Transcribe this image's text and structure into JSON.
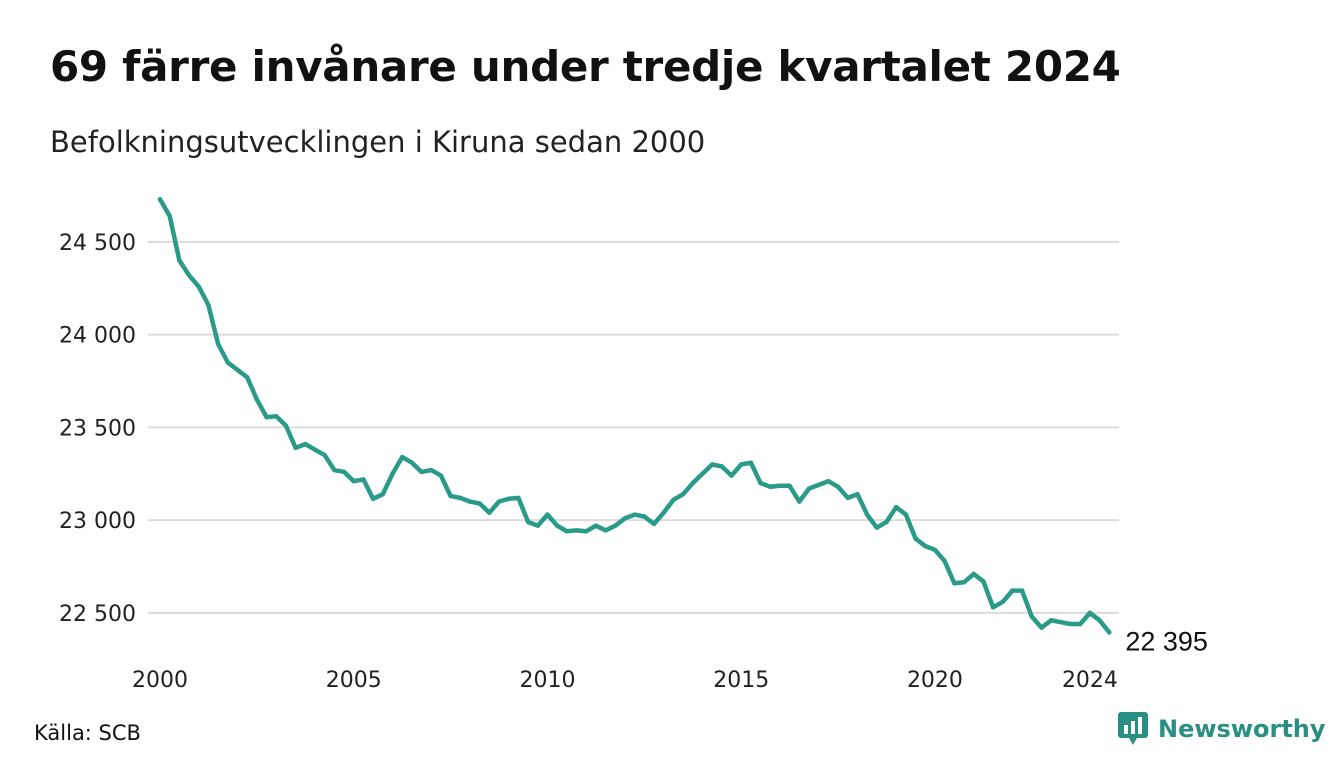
{
  "header": {
    "title": "69 färre invånare under tredje kvartalet 2024",
    "subtitle": "Befolkningsutvecklingen i Kiruna sedan 2000"
  },
  "footer": {
    "source": "Källa: SCB",
    "brand": "Newsworthy",
    "brand_icon": "bar-chart-speech-bubble-icon"
  },
  "colors": {
    "line": "#2a9a89",
    "grid": "#dcdcdc",
    "brand": "#2a8f83"
  },
  "chart_data": {
    "type": "line",
    "title": "69 färre invånare under tredje kvartalet 2024",
    "subtitle": "Befolkningsutvecklingen i Kiruna sedan 2000",
    "xlabel": "",
    "ylabel": "",
    "frequency": "quarterly",
    "x_start": 2000,
    "x_ticks": [
      "2000",
      "2005",
      "2010",
      "2015",
      "2020",
      "2024"
    ],
    "y_ticks": [
      "22 500",
      "23 000",
      "23 500",
      "24 000",
      "24 500"
    ],
    "ylim": [
      22300,
      24780
    ],
    "xlim": [
      2000,
      2024.75
    ],
    "grid": "horizontal",
    "last_value_label": "22 395",
    "series": [
      {
        "values": [
          24730,
          24640,
          24400,
          24320,
          24260,
          24160,
          23950,
          23850,
          23810,
          23770,
          23650,
          23555,
          23560,
          23510,
          23390,
          23410,
          23380,
          23350,
          23270,
          23260,
          23210,
          23220,
          23115,
          23140,
          23250,
          23340,
          23310,
          23260,
          23270,
          23240,
          23130,
          23120,
          23100,
          23090,
          23040,
          23100,
          23115,
          23120,
          22990,
          22970,
          23030,
          22970,
          22940,
          22945,
          22940,
          22970,
          22945,
          22970,
          23010,
          23030,
          23020,
          22980,
          23040,
          23110,
          23140,
          23200,
          23250,
          23300,
          23290,
          23240,
          23300,
          23310,
          23200,
          23180,
          23185,
          23185,
          23100,
          23170,
          23190,
          23210,
          23180,
          23120,
          23140,
          23030,
          22960,
          22990,
          23070,
          23030,
          22900,
          22860,
          22840,
          22780,
          22660,
          22665,
          22710,
          22670,
          22530,
          22560,
          22620,
          22620,
          22480,
          22420,
          22460,
          22450,
          22440,
          22440,
          22500,
          22460,
          22395
        ]
      }
    ]
  }
}
